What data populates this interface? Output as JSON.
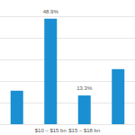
{
  "chart_data": {
    "type": "bar",
    "categories": [
      null,
      "$10 – $15 bn",
      "$15 – $18 bn",
      null
    ],
    "values": [
      15.5,
      48.9,
      13.3,
      25.5
    ],
    "value_labels": [
      null,
      "48.9%",
      "13.3%",
      null
    ],
    "data_labels": true,
    "color": "#1a8fd1",
    "ylim": [
      0,
      50
    ],
    "yticks": [
      0,
      10,
      20,
      30,
      40,
      50
    ],
    "grid": true,
    "tick_labels": "x"
  }
}
